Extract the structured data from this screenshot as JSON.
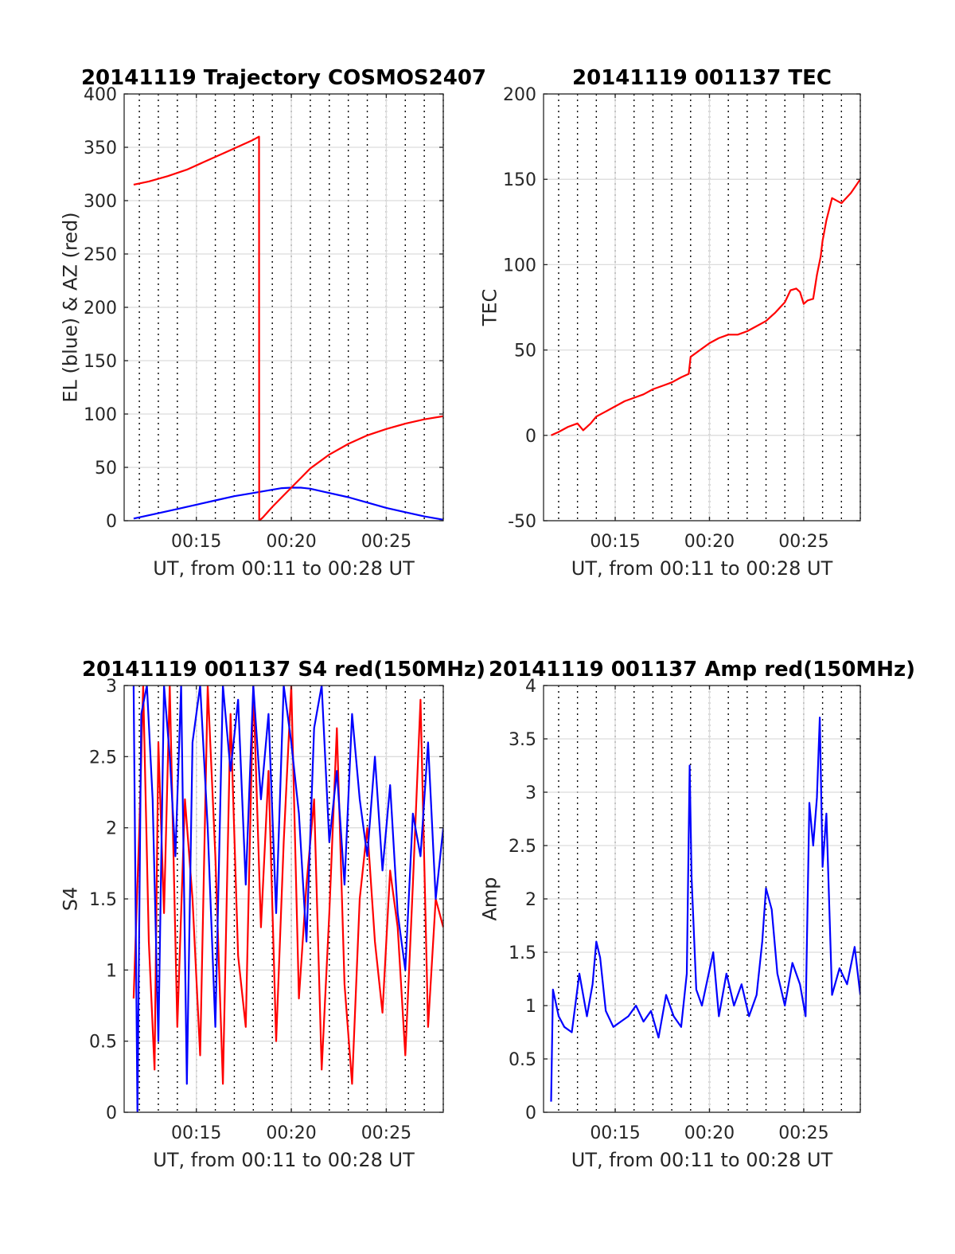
{
  "chart_data": [
    {
      "type": "line",
      "title": "20141119 Trajectory COSMOS2407",
      "xlabel": "UT, from 00:11 to 00:28 UT",
      "ylabel": "EL (blue) & AZ (red)",
      "x_unit": "minutes after 00:00 UT",
      "xlim": [
        11.2,
        28.0
      ],
      "ylim": [
        0,
        400
      ],
      "xticks": [
        15,
        20,
        25
      ],
      "xtick_labels": [
        "00:15",
        "00:20",
        "00:25"
      ],
      "yticks": [
        0,
        50,
        100,
        150,
        200,
        250,
        300,
        350,
        400
      ],
      "grid": true,
      "minor_x_grid": "dotted",
      "series": [
        {
          "color": "#0000ff",
          "x": [
            11.7,
            13,
            14,
            15,
            16,
            17,
            18,
            19,
            19.5,
            20,
            20.5,
            21,
            22,
            23,
            24,
            25,
            26,
            27,
            28
          ],
          "values": [
            2,
            7,
            11,
            15,
            19,
            23,
            26,
            29,
            30.5,
            31,
            31,
            30,
            26,
            22,
            17,
            12,
            8,
            4,
            1
          ]
        },
        {
          "color": "#ff0000",
          "x": [
            11.7,
            12.5,
            13.5,
            14.5,
            15.5,
            16.5,
            17.5,
            18.0,
            18.3,
            18.31,
            18.5,
            19,
            19.5,
            20,
            20.5,
            21,
            22,
            23,
            24,
            25,
            26,
            27,
            28
          ],
          "values": [
            315,
            318,
            323,
            329,
            337,
            345,
            353,
            357,
            360,
            0,
            3,
            13,
            22,
            31,
            40,
            49,
            62,
            72,
            80,
            86,
            91,
            95,
            98
          ]
        }
      ]
    },
    {
      "type": "line",
      "title": "20141119 001137 TEC",
      "xlabel": "UT, from 00:11 to 00:28 UT",
      "ylabel": "TEC",
      "x_unit": "minutes after 00:00 UT",
      "xlim": [
        11.2,
        28.0
      ],
      "ylim": [
        -50,
        200
      ],
      "xticks": [
        15,
        20,
        25
      ],
      "xtick_labels": [
        "00:15",
        "00:20",
        "00:25"
      ],
      "yticks": [
        -50,
        0,
        50,
        100,
        150,
        200
      ],
      "grid": true,
      "minor_x_grid": "dotted",
      "series": [
        {
          "color": "#ff0000",
          "x": [
            11.6,
            12,
            12.5,
            13,
            13.3,
            13.7,
            14,
            14.5,
            15,
            15.5,
            16,
            16.5,
            17,
            17.5,
            18,
            18.5,
            18.9,
            19.0,
            19.5,
            20,
            20.5,
            21,
            21.5,
            22,
            22.5,
            23,
            23.5,
            24,
            24.3,
            24.6,
            24.8,
            25,
            25.2,
            25.5,
            25.7,
            25.9,
            26.0,
            26.2,
            26.5,
            27,
            27.5,
            28
          ],
          "values": [
            0,
            2,
            5,
            7,
            3,
            7,
            11,
            14,
            17,
            20,
            22,
            24,
            27,
            29,
            31,
            34,
            36,
            46,
            50,
            54,
            57,
            59,
            59,
            61,
            64,
            67,
            72,
            78,
            85,
            86,
            84,
            77,
            79,
            80,
            94,
            105,
            114,
            126,
            139,
            136,
            142,
            150
          ]
        }
      ]
    },
    {
      "type": "line",
      "title": "20141119 001137 S4 red(150MHz)",
      "xlabel": "UT, from 00:11 to 00:28 UT",
      "ylabel": "S4",
      "x_unit": "minutes after 00:00 UT",
      "xlim": [
        11.2,
        28.0
      ],
      "ylim": [
        0,
        3
      ],
      "xticks": [
        15,
        20,
        25
      ],
      "xtick_labels": [
        "00:15",
        "00:20",
        "00:25"
      ],
      "yticks": [
        0,
        0.5,
        1,
        1.5,
        2,
        2.5,
        3
      ],
      "ytick_labels": [
        "0",
        "0.5",
        "1",
        "1.5",
        "2",
        "2.5",
        "3"
      ],
      "grid": true,
      "minor_x_grid": "dotted",
      "series": [
        {
          "color": "#ff0000",
          "x": [
            11.7,
            12.0,
            12.2,
            12.5,
            12.8,
            13.0,
            13.3,
            13.6,
            14.0,
            14.4,
            14.8,
            15.2,
            15.6,
            16.0,
            16.4,
            16.8,
            17.2,
            17.6,
            18.0,
            18.4,
            18.8,
            19.2,
            19.6,
            20.0,
            20.4,
            20.8,
            21.2,
            21.6,
            22.0,
            22.4,
            22.8,
            23.2,
            23.6,
            24.0,
            24.4,
            24.8,
            25.2,
            25.6,
            26.0,
            26.4,
            26.8,
            27.2,
            27.6,
            28.0
          ],
          "values": [
            0.8,
            2.0,
            3.0,
            1.2,
            0.3,
            2.6,
            1.4,
            3.0,
            0.6,
            2.2,
            1.5,
            0.4,
            3.0,
            1.8,
            0.2,
            2.8,
            1.1,
            0.6,
            3.0,
            1.3,
            2.4,
            0.5,
            1.9,
            3.0,
            0.8,
            1.6,
            2.2,
            0.3,
            1.4,
            2.7,
            0.9,
            0.2,
            1.5,
            2.0,
            1.2,
            0.7,
            1.7,
            1.3,
            0.4,
            1.6,
            2.9,
            0.6,
            1.5,
            1.3
          ]
        },
        {
          "color": "#0000ff",
          "x": [
            11.7,
            11.9,
            12.1,
            12.4,
            12.7,
            13.0,
            13.3,
            13.6,
            13.9,
            14.2,
            14.5,
            14.8,
            15.2,
            15.6,
            16.0,
            16.4,
            16.8,
            17.2,
            17.6,
            18.0,
            18.4,
            18.8,
            19.2,
            19.6,
            20.0,
            20.4,
            20.8,
            21.2,
            21.6,
            22.0,
            22.4,
            22.8,
            23.2,
            23.6,
            24.0,
            24.4,
            24.8,
            25.2,
            25.6,
            26.0,
            26.4,
            26.8,
            27.2,
            27.6,
            28.0
          ],
          "values": [
            3.0,
            0.0,
            2.8,
            3.0,
            2.2,
            0.5,
            3.0,
            2.5,
            1.8,
            3.0,
            0.2,
            2.6,
            3.0,
            2.0,
            0.6,
            3.0,
            2.4,
            2.9,
            1.6,
            3.0,
            2.2,
            2.8,
            1.4,
            3.0,
            2.6,
            2.1,
            1.2,
            2.7,
            3.0,
            1.9,
            2.4,
            1.6,
            2.8,
            2.2,
            1.8,
            2.5,
            1.7,
            2.3,
            1.4,
            1.0,
            2.1,
            1.8,
            2.6,
            1.5,
            2.0
          ]
        }
      ]
    },
    {
      "type": "line",
      "title": "20141119 001137 Amp red(150MHz)",
      "xlabel": "UT, from 00:11 to 00:28 UT",
      "ylabel": "Amp",
      "x_unit": "minutes after 00:00 UT",
      "xlim": [
        11.2,
        28.0
      ],
      "ylim": [
        0,
        4
      ],
      "xticks": [
        15,
        20,
        25
      ],
      "xtick_labels": [
        "00:15",
        "00:20",
        "00:25"
      ],
      "yticks": [
        0,
        0.5,
        1,
        1.5,
        2,
        2.5,
        3,
        3.5,
        4
      ],
      "ytick_labels": [
        "0",
        "0.5",
        "1",
        "1.5",
        "2",
        "2.5",
        "3",
        "3.5",
        "4"
      ],
      "grid": true,
      "minor_x_grid": "dotted",
      "series": [
        {
          "color": "#0000ff",
          "x": [
            11.6,
            11.7,
            12.0,
            12.3,
            12.7,
            13.1,
            13.5,
            13.8,
            14.0,
            14.2,
            14.5,
            14.9,
            15.3,
            15.7,
            16.1,
            16.5,
            16.9,
            17.3,
            17.7,
            18.1,
            18.5,
            18.8,
            18.95,
            19.05,
            19.3,
            19.6,
            19.9,
            20.2,
            20.5,
            20.9,
            21.3,
            21.7,
            22.1,
            22.5,
            22.8,
            23.0,
            23.3,
            23.6,
            24.0,
            24.4,
            24.8,
            25.1,
            25.3,
            25.5,
            25.7,
            25.85,
            26.0,
            26.2,
            26.5,
            26.9,
            27.3,
            27.7,
            28.0
          ],
          "values": [
            0.1,
            1.15,
            0.9,
            0.8,
            0.75,
            1.3,
            0.9,
            1.2,
            1.6,
            1.45,
            0.95,
            0.8,
            0.85,
            0.9,
            1.0,
            0.85,
            0.95,
            0.7,
            1.1,
            0.9,
            0.8,
            1.3,
            3.25,
            2.2,
            1.15,
            1.0,
            1.25,
            1.5,
            0.9,
            1.3,
            1.0,
            1.2,
            0.9,
            1.1,
            1.6,
            2.1,
            1.9,
            1.3,
            1.0,
            1.4,
            1.2,
            0.9,
            2.9,
            2.5,
            2.95,
            3.7,
            2.3,
            2.8,
            1.1,
            1.35,
            1.2,
            1.55,
            1.1
          ]
        }
      ]
    }
  ]
}
